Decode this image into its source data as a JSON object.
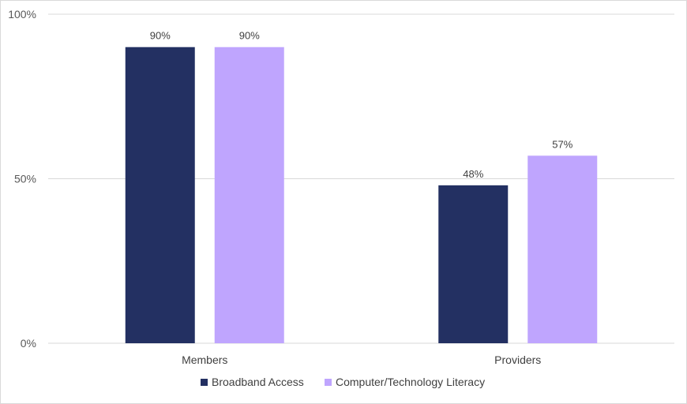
{
  "chart_data": {
    "type": "bar",
    "title": "",
    "xlabel": "",
    "ylabel": "",
    "categories": [
      "Members",
      "Providers"
    ],
    "series": [
      {
        "name": "Broadband Access",
        "values": [
          90,
          48
        ],
        "labels": [
          "90%",
          "48%"
        ],
        "color": "#233062"
      },
      {
        "name": "Computer/Technology Literacy",
        "values": [
          90,
          57
        ],
        "labels": [
          "90%",
          "57%"
        ],
        "color": "#bfa5fe"
      }
    ],
    "ylim": [
      0,
      100
    ],
    "yticks": [
      0,
      50,
      100
    ],
    "ytick_labels": [
      "0%",
      "50%",
      "100%"
    ],
    "grid": true,
    "legend_position": "bottom"
  }
}
